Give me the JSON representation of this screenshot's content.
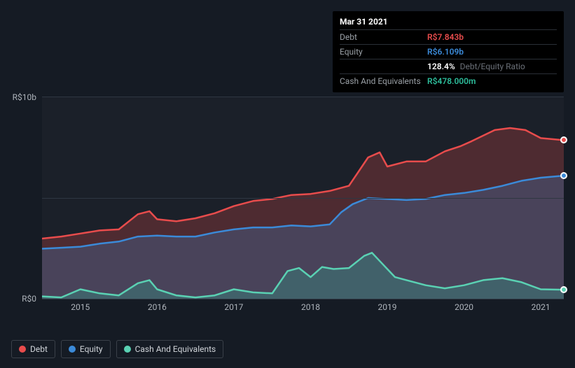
{
  "tooltip": {
    "date": "Mar 31 2021",
    "rows": [
      {
        "label": "Debt",
        "value": "R$7.843b",
        "color": "#e84c4c"
      },
      {
        "label": "Equity",
        "value": "R$6.109b",
        "color": "#3b8ad8"
      },
      {
        "label": "",
        "value": "128.4%",
        "extra": "Debt/Equity Ratio",
        "color": "#ffffff"
      },
      {
        "label": "Cash And Equivalents",
        "value": "R$478.000m",
        "color": "#2dbd9b"
      }
    ]
  },
  "chart": {
    "type": "area",
    "background_color": "#1b2029",
    "page_background": "#151b24",
    "grid_color": "#2f3742",
    "ymin": 0,
    "ymax": 10,
    "yticks": [
      {
        "v": 10,
        "label": "R$10b"
      },
      {
        "v": 0,
        "label": "R$0"
      }
    ],
    "xmin": 2014.5,
    "xmax": 2021.3,
    "xticks": [
      2015,
      2016,
      2017,
      2018,
      2019,
      2020,
      2021
    ],
    "line_width": 2.5,
    "fill_opacity": 0.25,
    "series": [
      {
        "name": "Debt",
        "color": "#e84c4c",
        "fill": "#e84c4c",
        "data": [
          [
            2014.5,
            3.0
          ],
          [
            2014.75,
            3.1
          ],
          [
            2015.0,
            3.25
          ],
          [
            2015.25,
            3.4
          ],
          [
            2015.5,
            3.45
          ],
          [
            2015.75,
            4.2
          ],
          [
            2015.9,
            4.35
          ],
          [
            2016.0,
            3.95
          ],
          [
            2016.25,
            3.85
          ],
          [
            2016.5,
            4.0
          ],
          [
            2016.75,
            4.25
          ],
          [
            2017.0,
            4.6
          ],
          [
            2017.25,
            4.85
          ],
          [
            2017.5,
            4.95
          ],
          [
            2017.75,
            5.15
          ],
          [
            2018.0,
            5.2
          ],
          [
            2018.25,
            5.35
          ],
          [
            2018.5,
            5.6
          ],
          [
            2018.75,
            7.0
          ],
          [
            2018.9,
            7.25
          ],
          [
            2019.0,
            6.55
          ],
          [
            2019.25,
            6.8
          ],
          [
            2019.5,
            6.8
          ],
          [
            2019.75,
            7.3
          ],
          [
            2019.95,
            7.55
          ],
          [
            2020.1,
            7.8
          ],
          [
            2020.4,
            8.35
          ],
          [
            2020.6,
            8.45
          ],
          [
            2020.8,
            8.35
          ],
          [
            2021.0,
            7.95
          ],
          [
            2021.3,
            7.85
          ]
        ]
      },
      {
        "name": "Equity",
        "color": "#3b8ad8",
        "fill": "#3b8ad8",
        "data": [
          [
            2014.5,
            2.5
          ],
          [
            2014.75,
            2.55
          ],
          [
            2015.0,
            2.6
          ],
          [
            2015.25,
            2.75
          ],
          [
            2015.5,
            2.85
          ],
          [
            2015.75,
            3.1
          ],
          [
            2016.0,
            3.15
          ],
          [
            2016.25,
            3.1
          ],
          [
            2016.5,
            3.1
          ],
          [
            2016.75,
            3.3
          ],
          [
            2017.0,
            3.45
          ],
          [
            2017.25,
            3.55
          ],
          [
            2017.5,
            3.55
          ],
          [
            2017.75,
            3.65
          ],
          [
            2018.0,
            3.6
          ],
          [
            2018.25,
            3.7
          ],
          [
            2018.4,
            4.3
          ],
          [
            2018.55,
            4.7
          ],
          [
            2018.75,
            5.0
          ],
          [
            2019.0,
            4.95
          ],
          [
            2019.25,
            4.9
          ],
          [
            2019.5,
            4.95
          ],
          [
            2019.75,
            5.15
          ],
          [
            2020.0,
            5.25
          ],
          [
            2020.25,
            5.4
          ],
          [
            2020.5,
            5.6
          ],
          [
            2020.75,
            5.85
          ],
          [
            2021.0,
            6.0
          ],
          [
            2021.3,
            6.1
          ]
        ]
      },
      {
        "name": "Cash And Equivalents",
        "color": "#5ad1b3",
        "fill": "#2dbd9b",
        "data": [
          [
            2014.5,
            0.15
          ],
          [
            2014.75,
            0.1
          ],
          [
            2015.0,
            0.5
          ],
          [
            2015.25,
            0.3
          ],
          [
            2015.5,
            0.2
          ],
          [
            2015.75,
            0.8
          ],
          [
            2015.9,
            0.95
          ],
          [
            2016.0,
            0.5
          ],
          [
            2016.25,
            0.2
          ],
          [
            2016.5,
            0.1
          ],
          [
            2016.75,
            0.2
          ],
          [
            2017.0,
            0.5
          ],
          [
            2017.25,
            0.35
          ],
          [
            2017.5,
            0.3
          ],
          [
            2017.7,
            1.4
          ],
          [
            2017.85,
            1.55
          ],
          [
            2018.0,
            1.1
          ],
          [
            2018.15,
            1.6
          ],
          [
            2018.3,
            1.5
          ],
          [
            2018.5,
            1.55
          ],
          [
            2018.7,
            2.15
          ],
          [
            2018.8,
            2.3
          ],
          [
            2018.95,
            1.7
          ],
          [
            2019.1,
            1.1
          ],
          [
            2019.25,
            0.95
          ],
          [
            2019.5,
            0.7
          ],
          [
            2019.75,
            0.55
          ],
          [
            2020.0,
            0.7
          ],
          [
            2020.25,
            0.95
          ],
          [
            2020.5,
            1.05
          ],
          [
            2020.75,
            0.85
          ],
          [
            2021.0,
            0.5
          ],
          [
            2021.3,
            0.48
          ]
        ]
      }
    ],
    "end_markers": [
      {
        "series": "Debt",
        "x": 2021.3,
        "y": 7.85,
        "color": "#e84c4c"
      },
      {
        "series": "Equity",
        "x": 2021.3,
        "y": 6.1,
        "color": "#3b8ad8"
      },
      {
        "series": "Cash And Equivalents",
        "x": 2021.3,
        "y": 0.48,
        "color": "#5ad1b3"
      }
    ]
  },
  "legend": {
    "items": [
      {
        "label": "Debt",
        "color": "#e84c4c"
      },
      {
        "label": "Equity",
        "color": "#3b8ad8"
      },
      {
        "label": "Cash And Equivalents",
        "color": "#5ad1b3"
      }
    ]
  },
  "text_colors": {
    "axis": "#aeb4bb",
    "muted": "#9aa0a6"
  },
  "fontsize": {
    "axis": 12,
    "tooltip": 12,
    "legend": 12
  }
}
